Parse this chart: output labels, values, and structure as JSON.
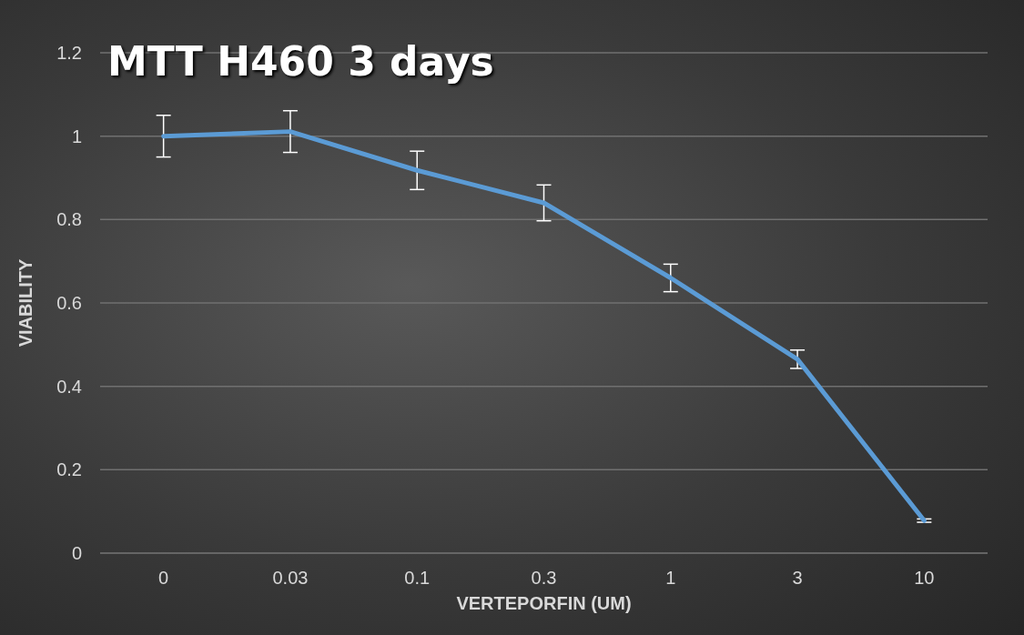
{
  "chart_data": {
    "type": "line",
    "title": "MTT H460 3 days",
    "xlabel": "VERTEPORFIN (UM)",
    "ylabel": "VIABILITY",
    "categories": [
      "0",
      "0.03",
      "0.1",
      "0.3",
      "1",
      "3",
      "10"
    ],
    "series": [
      {
        "color": "#5b9bd5",
        "values": [
          1.0,
          1.011,
          0.918,
          0.84,
          0.66,
          0.465,
          0.078
        ],
        "errors": [
          0.05,
          0.05,
          0.046,
          0.043,
          0.033,
          0.022,
          0.004
        ]
      }
    ],
    "ylim": [
      0,
      1.2
    ],
    "yticks": [
      0,
      0.2,
      0.4,
      0.6,
      0.8,
      1,
      1.2
    ],
    "grid": "y",
    "marker": "none",
    "line_style": "solid"
  }
}
